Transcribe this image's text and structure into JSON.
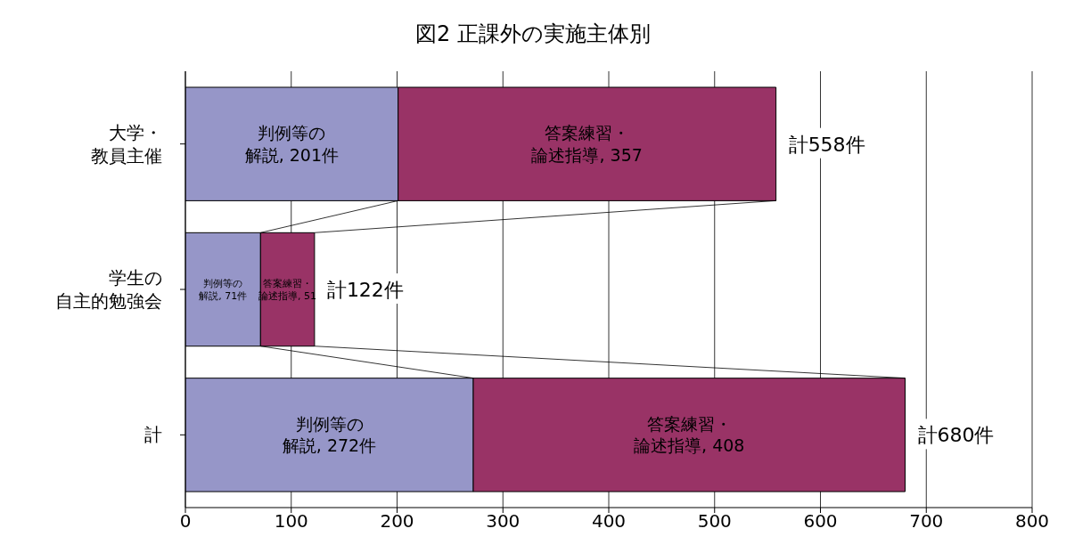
{
  "chart_data": {
    "type": "bar",
    "title": "図2 正課外の実施主体別",
    "orientation": "horizontal",
    "stacked": true,
    "categories": [
      "大学・教員主催",
      "学生の自主的勉強会",
      "計"
    ],
    "series": [
      {
        "color": "#9696c8",
        "values": [
          201,
          71,
          272
        ],
        "value_labels": [
          "判例等の解説, 201件",
          "判例等の解説, 71件",
          "判例等の解説, 272件"
        ]
      },
      {
        "color": "#993366",
        "values": [
          357,
          51,
          408
        ],
        "value_labels": [
          "答案練習・論述指導, 357",
          "答案練習・論述指導, 51",
          "答案練習・論述指導, 408"
        ]
      }
    ],
    "totals": [
      "計558件",
      "計122件",
      "計680件"
    ],
    "xlim": [
      0,
      800
    ],
    "xticks": [
      0,
      100,
      200,
      300,
      400,
      500,
      600,
      700,
      800
    ],
    "grid": "x"
  }
}
